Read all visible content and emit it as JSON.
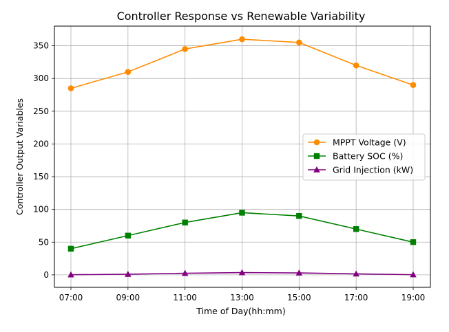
{
  "chart_data": {
    "type": "line",
    "title": "Controller Response vs Renewable Variability",
    "xlabel": "Time of Day(hh:mm)",
    "ylabel": "Controller Output Variables",
    "categories": [
      "07:00",
      "09:00",
      "11:00",
      "13:00",
      "15:00",
      "17:00",
      "19:00"
    ],
    "ylim": [
      -19,
      380
    ],
    "yticks": [
      0,
      50,
      100,
      150,
      200,
      250,
      300,
      350
    ],
    "grid": true,
    "legend_position": "center-right",
    "series": [
      {
        "name": "MPPT Voltage (V)",
        "values": [
          285,
          310,
          345,
          360,
          355,
          320,
          290
        ],
        "color": "#ff8c00",
        "marker": "circle"
      },
      {
        "name": "Battery SOC (%)",
        "values": [
          40,
          60,
          80,
          95,
          90,
          70,
          50
        ],
        "color": "#008000",
        "marker": "square"
      },
      {
        "name": "Grid Injection (kW)",
        "values": [
          0.2,
          1.0,
          2.5,
          3.5,
          3.0,
          1.5,
          0.3
        ],
        "color": "#800080",
        "marker": "triangle"
      }
    ]
  }
}
